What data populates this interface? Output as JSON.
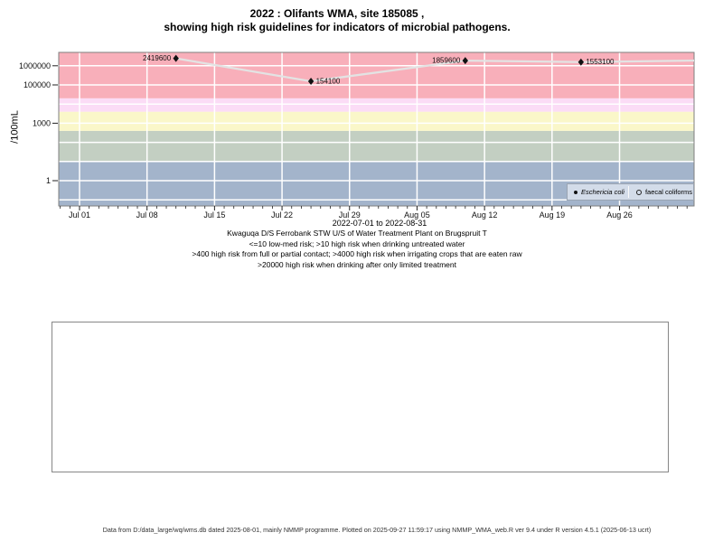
{
  "title": {
    "line1": "2022 : Olifants WMA, site 185085 ,",
    "line2": "showing high risk guidelines for indicators of microbial pathogens."
  },
  "captions": {
    "line1": "Kwaguqa D/S Ferrobank STW U/S of Water Treatment Plant on Brugspruit T",
    "line2": "<=10 low-med risk; >10 high risk when drinking untreated water",
    "line3": ">400 high risk from full or partial contact; >4000 high risk when irrigating crops that are eaten raw",
    "line4": ">20000 high risk when drinking after only limited treatment"
  },
  "footer": {
    "text": "Data from D:/data_large/wq/wms.db dated 2025-08-01, mainly NMMP programme. Plotted on 2025-09-27 11:59:17 using NMMP_WMA_web.R ver 9.4 under R version 4.5.1 (2025-06-13 ucrt)"
  },
  "chart_data": {
    "type": "scatter",
    "y_scale": "log",
    "xlabel": "2022-07-01 to 2022-08-31",
    "ylabel": "/100mL",
    "x_range": [
      "2022-07-01",
      "2022-08-31"
    ],
    "ylim_approx": [
      0.05,
      5200000
    ],
    "grid": {
      "color": "#ffffff",
      "h_lines_at_decades": [
        0.1,
        1,
        10,
        100,
        1000,
        10000,
        100000,
        1000000
      ],
      "v_lines_weekly": true
    },
    "x_ticks": [
      {
        "date": "2022-07-01",
        "label": "Jul 01"
      },
      {
        "date": "2022-07-08",
        "label": "Jul 08"
      },
      {
        "date": "2022-07-15",
        "label": "Jul 15"
      },
      {
        "date": "2022-07-22",
        "label": "Jul 22"
      },
      {
        "date": "2022-07-29",
        "label": "Jul 29"
      },
      {
        "date": "2022-08-05",
        "label": "Aug 05"
      },
      {
        "date": "2022-08-12",
        "label": "Aug 12"
      },
      {
        "date": "2022-08-19",
        "label": "Aug 19"
      },
      {
        "date": "2022-08-26",
        "label": "Aug 26"
      }
    ],
    "y_ticks": [
      {
        "value": 1000000,
        "label": "1000000"
      },
      {
        "value": 100000,
        "label": "100000"
      },
      {
        "value": 1000,
        "label": "1000"
      },
      {
        "value": 1,
        "label": "1"
      }
    ],
    "risk_bands": [
      {
        "label": "<=10 low-med risk",
        "from": 0.05,
        "to": 10,
        "color": "#a3b4cb"
      },
      {
        "label": ">10 high risk when drinking untreated water",
        "from": 10,
        "to": 400,
        "color": "#c3cfc2"
      },
      {
        "label": ">400 high risk from full or partial contact",
        "from": 400,
        "to": 4000,
        "color": "#faf7c9"
      },
      {
        "label": ">4000 high risk when irrigating crops that are eaten raw",
        "from": 4000,
        "to": 20000,
        "color": "#fbdcf6"
      },
      {
        "label": ">20000 high risk when drinking after only limited treatment",
        "from": 20000,
        "to": 5200000,
        "color": "#f8afba"
      }
    ],
    "series": [
      {
        "name": "Eschericia coli",
        "marker": "filled-diamond",
        "marker_color": "#111111",
        "line_color": "#e3e3e3",
        "line_extends_to_right_edge": true,
        "points": [
          {
            "date": "2022-07-11",
            "value": 2419600,
            "label": "2419600",
            "label_side": "left"
          },
          {
            "date": "2022-07-25",
            "value": 154100,
            "label": "154100",
            "label_side": "right"
          },
          {
            "date": "2022-08-10",
            "value": 1859600,
            "label": "1859600",
            "label_side": "left"
          },
          {
            "date": "2022-08-22",
            "value": 1553100,
            "label": "1553100",
            "label_side": "right"
          }
        ]
      },
      {
        "name": "faecal coliforms",
        "marker": "open-circle",
        "marker_color": "#111111",
        "points": []
      }
    ],
    "legend": {
      "position": "inside-bottom-right",
      "background": "#d3dce9",
      "entries": [
        {
          "marker": "filled-circle",
          "label": "Eschericia coli",
          "italic": true
        },
        {
          "marker": "open-circle",
          "label": "faecal coliforms",
          "italic": false
        }
      ]
    }
  }
}
